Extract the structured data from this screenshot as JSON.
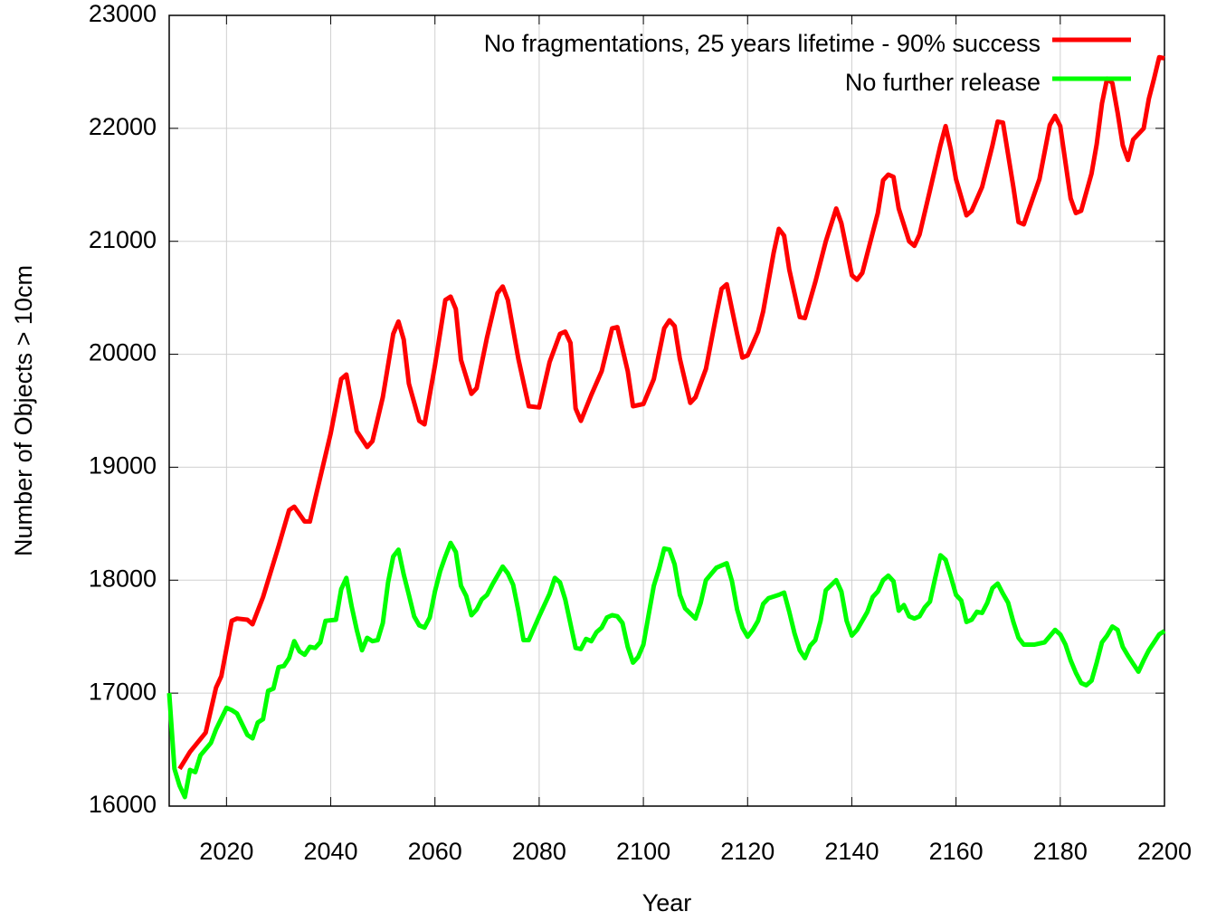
{
  "chart_data": {
    "type": "line",
    "xlabel": "Year",
    "ylabel": "Number of Objects > 10cm",
    "xlim": [
      2009,
      2200
    ],
    "ylim": [
      16000,
      23000
    ],
    "xticks": [
      2020,
      2040,
      2060,
      2080,
      2100,
      2120,
      2140,
      2160,
      2180,
      2200
    ],
    "yticks": [
      16000,
      17000,
      18000,
      19000,
      20000,
      21000,
      22000,
      23000
    ],
    "grid": true,
    "legend": "top-right",
    "series": [
      {
        "name": "No fragmentations, 25 years lifetime - 90% success",
        "color": "#ff0000",
        "x": [
          2011,
          2013,
          2016,
          2018,
          2019,
          2021,
          2022,
          2024,
          2025,
          2027,
          2030,
          2032,
          2033,
          2035,
          2036,
          2037,
          2040,
          2042,
          2043,
          2045,
          2047,
          2048,
          2050,
          2052,
          2053,
          2054,
          2055,
          2057,
          2058,
          2060,
          2062,
          2063,
          2064,
          2065,
          2067,
          2068,
          2070,
          2072,
          2073,
          2074,
          2076,
          2078,
          2080,
          2082,
          2084,
          2085,
          2086,
          2087,
          2088,
          2090,
          2092,
          2094,
          2095,
          2097,
          2098,
          2100,
          2102,
          2104,
          2105,
          2106,
          2107,
          2109,
          2110,
          2112,
          2114,
          2115,
          2116,
          2118,
          2119,
          2120,
          2122,
          2123,
          2125,
          2126,
          2127,
          2128,
          2130,
          2131,
          2133,
          2135,
          2137,
          2138,
          2140,
          2141,
          2142,
          2145,
          2146,
          2147,
          2148,
          2149,
          2151,
          2152,
          2153,
          2155,
          2157,
          2158,
          2159,
          2160,
          2162,
          2163,
          2165,
          2167,
          2168,
          2169,
          2171,
          2172,
          2173,
          2176,
          2178,
          2179,
          2180,
          2182,
          2183,
          2184,
          2186,
          2187,
          2188,
          2189,
          2190,
          2191,
          2192,
          2193,
          2194,
          2196,
          2197,
          2198,
          2199,
          2200
        ],
        "values": [
          16330,
          16480,
          16650,
          17050,
          17150,
          17640,
          17660,
          17650,
          17610,
          17850,
          18300,
          18620,
          18650,
          18520,
          18520,
          18720,
          19300,
          19780,
          19820,
          19320,
          19180,
          19230,
          19620,
          20180,
          20290,
          20130,
          19740,
          19410,
          19380,
          19900,
          20480,
          20510,
          20400,
          19950,
          19650,
          19700,
          20150,
          20540,
          20600,
          20480,
          19960,
          19540,
          19530,
          19930,
          20180,
          20200,
          20100,
          19520,
          19410,
          19640,
          19850,
          20230,
          20240,
          19850,
          19540,
          19560,
          19780,
          20230,
          20300,
          20250,
          19960,
          19570,
          19620,
          19870,
          20350,
          20580,
          20620,
          20180,
          19970,
          19990,
          20200,
          20380,
          20900,
          21110,
          21050,
          20750,
          20330,
          20320,
          20640,
          21000,
          21290,
          21160,
          20700,
          20660,
          20720,
          21250,
          21540,
          21590,
          21570,
          21290,
          21000,
          20960,
          21060,
          21450,
          21850,
          22020,
          21810,
          21550,
          21230,
          21270,
          21480,
          21850,
          22060,
          22050,
          21480,
          21170,
          21150,
          21550,
          22030,
          22110,
          22020,
          21380,
          21250,
          21270,
          21600,
          21860,
          22220,
          22440,
          22400,
          22140,
          21850,
          21720,
          21900,
          22000,
          22260,
          22440,
          22630,
          22620
        ]
      },
      {
        "name": "No further release",
        "color": "#00ff00",
        "x": [
          2009,
          2010,
          2011,
          2012,
          2013,
          2014,
          2015,
          2017,
          2018,
          2020,
          2021,
          2022,
          2024,
          2025,
          2026,
          2027,
          2028,
          2029,
          2030,
          2031,
          2032,
          2033,
          2034,
          2035,
          2036,
          2037,
          2038,
          2039,
          2041,
          2042,
          2043,
          2044,
          2045,
          2046,
          2047,
          2048,
          2049,
          2050,
          2051,
          2052,
          2053,
          2054,
          2055,
          2056,
          2057,
          2058,
          2059,
          2060,
          2061,
          2062,
          2063,
          2064,
          2065,
          2066,
          2067,
          2068,
          2069,
          2070,
          2071,
          2073,
          2074,
          2075,
          2076,
          2077,
          2078,
          2080,
          2082,
          2083,
          2084,
          2085,
          2087,
          2088,
          2089,
          2090,
          2091,
          2092,
          2093,
          2094,
          2095,
          2096,
          2097,
          2098,
          2099,
          2100,
          2101,
          2102,
          2103,
          2104,
          2105,
          2106,
          2107,
          2108,
          2110,
          2111,
          2112,
          2114,
          2116,
          2117,
          2118,
          2119,
          2120,
          2121,
          2122,
          2123,
          2124,
          2126,
          2127,
          2128,
          2129,
          2130,
          2131,
          2132,
          2133,
          2134,
          2135,
          2137,
          2138,
          2139,
          2140,
          2141,
          2143,
          2144,
          2145,
          2146,
          2147,
          2148,
          2149,
          2150,
          2151,
          2152,
          2153,
          2154,
          2155,
          2156,
          2157,
          2158,
          2159,
          2160,
          2161,
          2162,
          2163,
          2164,
          2165,
          2166,
          2167,
          2168,
          2169,
          2170,
          2171,
          2172,
          2173,
          2175,
          2177,
          2179,
          2180,
          2181,
          2182,
          2183,
          2184,
          2185,
          2186,
          2187,
          2188,
          2189,
          2190,
          2191,
          2192,
          2193,
          2194,
          2195,
          2196,
          2197,
          2198,
          2199,
          2200
        ],
        "values": [
          17000,
          16330,
          16180,
          16080,
          16320,
          16300,
          16450,
          16560,
          16680,
          16870,
          16850,
          16820,
          16630,
          16600,
          16740,
          16770,
          17020,
          17040,
          17230,
          17240,
          17310,
          17460,
          17370,
          17340,
          17410,
          17400,
          17450,
          17640,
          17650,
          17920,
          18020,
          17770,
          17560,
          17380,
          17490,
          17460,
          17470,
          17620,
          17980,
          18210,
          18270,
          18050,
          17870,
          17680,
          17600,
          17580,
          17670,
          17900,
          18080,
          18210,
          18330,
          18250,
          17950,
          17860,
          17690,
          17740,
          17830,
          17870,
          17960,
          18120,
          18060,
          17960,
          17730,
          17470,
          17470,
          17680,
          17880,
          18020,
          17980,
          17830,
          17400,
          17390,
          17480,
          17460,
          17540,
          17580,
          17670,
          17690,
          17680,
          17620,
          17410,
          17270,
          17320,
          17430,
          17690,
          17950,
          18100,
          18280,
          18270,
          18140,
          17870,
          17750,
          17660,
          17800,
          18000,
          18110,
          18150,
          17990,
          17740,
          17580,
          17500,
          17560,
          17640,
          17790,
          17840,
          17870,
          17890,
          17720,
          17530,
          17380,
          17310,
          17420,
          17470,
          17640,
          17910,
          18000,
          17900,
          17640,
          17510,
          17560,
          17720,
          17850,
          17900,
          18000,
          18040,
          17990,
          17730,
          17780,
          17680,
          17660,
          17680,
          17760,
          17810,
          18020,
          18220,
          18180,
          18030,
          17870,
          17820,
          17630,
          17650,
          17720,
          17710,
          17800,
          17930,
          17970,
          17880,
          17800,
          17630,
          17490,
          17430,
          17430,
          17450,
          17560,
          17520,
          17430,
          17290,
          17180,
          17090,
          17070,
          17110,
          17270,
          17450,
          17510,
          17590,
          17560,
          17410,
          17330,
          17260,
          17190,
          17290,
          17380,
          17450,
          17520,
          17550
        ]
      }
    ]
  }
}
